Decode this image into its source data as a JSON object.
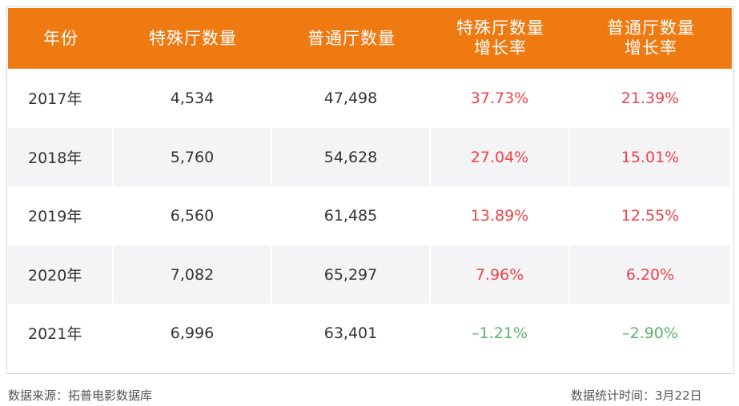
{
  "table": {
    "headers": [
      [
        "年份"
      ],
      [
        "特殊厅数量"
      ],
      [
        "普通厅数量"
      ],
      [
        "特殊厅数量",
        "增长率"
      ],
      [
        "普通厅数量",
        "增长率"
      ]
    ],
    "rows": [
      {
        "year": "2017年",
        "special": "4,534",
        "normal": "47,498",
        "special_growth": "37.73%",
        "normal_growth": "21.39%"
      },
      {
        "year": "2018年",
        "special": "5,760",
        "normal": "54,628",
        "special_growth": "27.04%",
        "normal_growth": "15.01%"
      },
      {
        "year": "2019年",
        "special": "6,560",
        "normal": "61,485",
        "special_growth": "13.89%",
        "normal_growth": "12.55%"
      },
      {
        "year": "2020年",
        "special": "7,082",
        "normal": "65,297",
        "special_growth": "7.96%",
        "normal_growth": "6.20%"
      },
      {
        "year": "2021年",
        "special": "6,996",
        "normal": "63,401",
        "special_growth": "–1.21%",
        "normal_growth": "–2.90%"
      }
    ]
  },
  "footer": {
    "source": "数据来源：拓普电影数据库",
    "stat_time": "数据统计时间：3月22日"
  },
  "colors": {
    "header_bg": "#f07a12",
    "positive": "#f0424a",
    "negative": "#5ab36a",
    "stripe": "#f4f4f6"
  },
  "chart_data": {
    "type": "table",
    "columns": [
      "年份",
      "特殊厅数量",
      "普通厅数量",
      "特殊厅数量增长率",
      "普通厅数量增长率"
    ],
    "x": [
      "2017年",
      "2018年",
      "2019年",
      "2020年",
      "2021年"
    ],
    "series": [
      {
        "name": "特殊厅数量",
        "values": [
          4534,
          5760,
          6560,
          7082,
          6996
        ]
      },
      {
        "name": "普通厅数量",
        "values": [
          47498,
          54628,
          61485,
          65297,
          63401
        ]
      },
      {
        "name": "特殊厅数量增长率",
        "values": [
          37.73,
          27.04,
          13.89,
          7.96,
          -1.21
        ]
      },
      {
        "name": "普通厅数量增长率",
        "values": [
          21.39,
          15.01,
          12.55,
          6.2,
          -2.9
        ]
      }
    ]
  }
}
